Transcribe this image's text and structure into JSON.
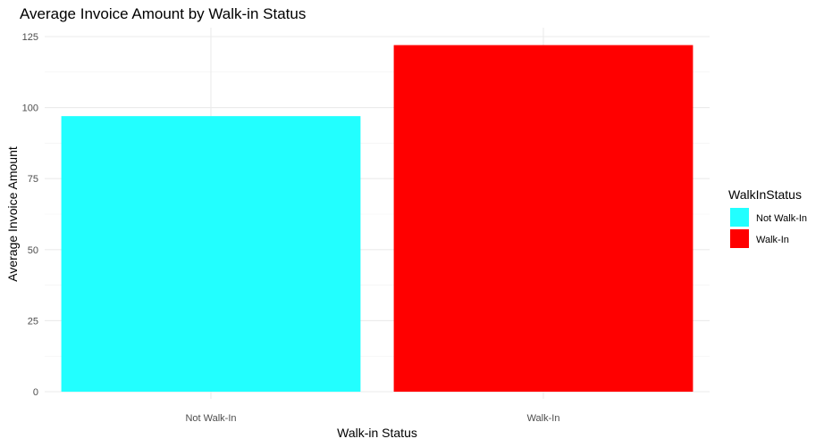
{
  "chart_data": {
    "type": "bar",
    "title": "Average Invoice Amount by Walk-in Status",
    "xlabel": "Walk-in Status",
    "ylabel": "Average Invoice Amount",
    "categories": [
      "Not Walk-In",
      "Walk-In"
    ],
    "values": [
      97,
      122
    ],
    "colors": [
      "#22FFFF",
      "#FF0000"
    ],
    "ylim": [
      0,
      125
    ],
    "yticks": [
      0,
      25,
      50,
      75,
      100,
      125
    ],
    "grid": true,
    "legend": {
      "title": "WalkInStatus",
      "position": "right",
      "entries": [
        "Not Walk-In",
        "Walk-In"
      ]
    }
  }
}
